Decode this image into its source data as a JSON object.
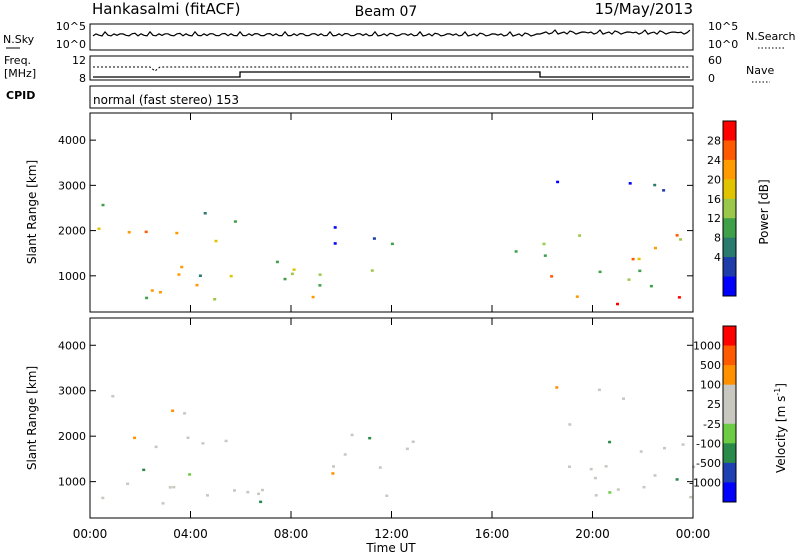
{
  "header": {
    "site": "Hankasalmi (fitACF)",
    "beam": "Beam 07",
    "date": "15/May/2013"
  },
  "sky_panel": {
    "left_label": "N.Sky",
    "left_ticks": [
      "10^5",
      "10^0"
    ],
    "right_ticks": [
      "10^5",
      "10^0"
    ],
    "right_label": "N.Search"
  },
  "freq_panel": {
    "left_label_1": "Freq.",
    "left_label_2": "[MHz]",
    "left_ticks": [
      "12",
      "8"
    ],
    "right_ticks": [
      "60",
      "0"
    ],
    "right_label": "Nave"
  },
  "cpid": {
    "label": "CPID",
    "mode_text": "normal (fast stereo) 153"
  },
  "chart_data": [
    {
      "type": "heatmap",
      "name": "power",
      "ylabel": "Slant Range [km]",
      "yticks": [
        "4000",
        "3000",
        "2000",
        "1000"
      ],
      "ytick_values": [
        4000,
        3000,
        2000,
        1000
      ],
      "ylim": [
        200,
        4600
      ],
      "colorbar_label": "Power [dB]",
      "colorbar_ticks": [
        "28",
        "24",
        "20",
        "16",
        "12",
        "8",
        "4"
      ],
      "colorbar_colors": [
        "#0000ff",
        "#1e3caa",
        "#2a7a6e",
        "#3fa04a",
        "#9ac84a",
        "#e0c400",
        "#ff9a00",
        "#ff5a00",
        "#ff0000"
      ],
      "colorbar_ranges": [
        [
          0,
          4
        ],
        [
          4,
          8
        ],
        [
          8,
          12
        ],
        [
          12,
          16
        ],
        [
          16,
          20
        ],
        [
          20,
          24
        ],
        [
          24,
          28
        ],
        [
          28,
          32
        ]
      ]
    },
    {
      "type": "heatmap",
      "name": "velocity",
      "ylabel": "Slant Range [km]",
      "yticks": [
        "4000",
        "3000",
        "2000",
        "1000"
      ],
      "ytick_values": [
        4000,
        3000,
        2000,
        1000
      ],
      "ylim": [
        200,
        4600
      ],
      "colorbar_label": "Velocity [m s",
      "colorbar_label_exp": "-1",
      "colorbar_label_close": "]",
      "colorbar_ticks": [
        "1000",
        "500",
        "100",
        "25",
        "-25",
        "-100",
        "-500",
        "-1000"
      ],
      "colorbar_colors": [
        "#0000ff",
        "#1e40b0",
        "#2a8a4a",
        "#6ccc44",
        "#c8c8c0",
        "#c8c8c0",
        "#ff9000",
        "#ff5a00",
        "#ff0000"
      ]
    }
  ],
  "xaxis": {
    "ticks": [
      "00:00",
      "04:00",
      "08:00",
      "12:00",
      "16:00",
      "20:00",
      "00:00"
    ],
    "tick_hours": [
      0,
      4,
      8,
      12,
      16,
      20,
      24
    ],
    "label": "Time UT"
  }
}
